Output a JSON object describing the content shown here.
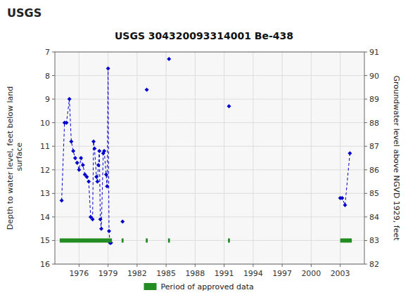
{
  "chart_data": {
    "type": "scatter",
    "title": "USGS 304320093314001 Be-438",
    "annotations": [
      "USGS"
    ],
    "y_label": "Depth to water level, feet below land\n surface",
    "y2_label": "Groundwater level above NGVD 1929, feet",
    "xlim": [
      1973.5,
      2005.5
    ],
    "xticks": [
      1976,
      1979,
      1982,
      1985,
      1988,
      1991,
      1994,
      1997,
      2000,
      2003
    ],
    "ylim": [
      16,
      7
    ],
    "yticks": [
      7,
      8,
      9,
      10,
      11,
      12,
      13,
      14,
      15,
      16
    ],
    "y2lim": [
      82,
      91
    ],
    "y2ticks": [
      91,
      90,
      89,
      88,
      87,
      86,
      85,
      84,
      83,
      82
    ],
    "grid": true,
    "legend": "bottom",
    "series": [
      {
        "type": "line",
        "color": "#0000cc",
        "marker": "diamond",
        "line_style": "dashed",
        "x": [
          1974.2,
          1974.5,
          1974.7,
          1975.0,
          1975.2,
          1975.4,
          1975.6,
          1975.8,
          1976.0,
          1976.2,
          1976.4,
          1976.6,
          1976.8,
          1977.0,
          1977.2,
          1977.4,
          1977.5,
          1977.6,
          1977.8,
          1977.9,
          1978.0,
          1978.1,
          1978.2,
          1978.3,
          1978.5,
          1978.6,
          1978.8,
          1978.9,
          1979.0,
          1979.1,
          1979.2,
          1979.3
        ],
        "values": [
          13.3,
          10.0,
          10.0,
          9.0,
          10.8,
          11.2,
          11.5,
          11.7,
          12.0,
          11.5,
          11.8,
          12.2,
          12.3,
          12.5,
          14.0,
          14.1,
          10.8,
          11.1,
          12.3,
          12.5,
          11.8,
          11.2,
          14.1,
          14.5,
          11.3,
          11.2,
          12.2,
          12.7,
          7.7,
          14.6,
          15.1,
          15.1
        ]
      },
      {
        "type": "scatter",
        "color": "#0000cc",
        "marker": "diamond",
        "x": [
          1980.5,
          1983.0,
          1985.3,
          1991.5
        ],
        "values": [
          14.2,
          8.6,
          7.3,
          9.3
        ]
      },
      {
        "type": "line",
        "color": "#0000cc",
        "marker": "diamond",
        "line_style": "dashed",
        "x": [
          2003.0,
          2003.2,
          2003.5,
          2004.0
        ],
        "values": [
          13.2,
          13.2,
          13.5,
          11.3
        ]
      },
      {
        "name": "Period of approved data",
        "type": "range",
        "color": "#228B22",
        "x_start": [
          1974.0,
          1980.4,
          1982.9,
          1985.2,
          1991.4,
          2003.0
        ],
        "x_end": [
          1979.4,
          1980.6,
          1983.1,
          1985.4,
          1991.6,
          2004.2
        ],
        "values": [
          15.0,
          15.0,
          15.0,
          15.0,
          15.0,
          15.0
        ]
      }
    ]
  }
}
